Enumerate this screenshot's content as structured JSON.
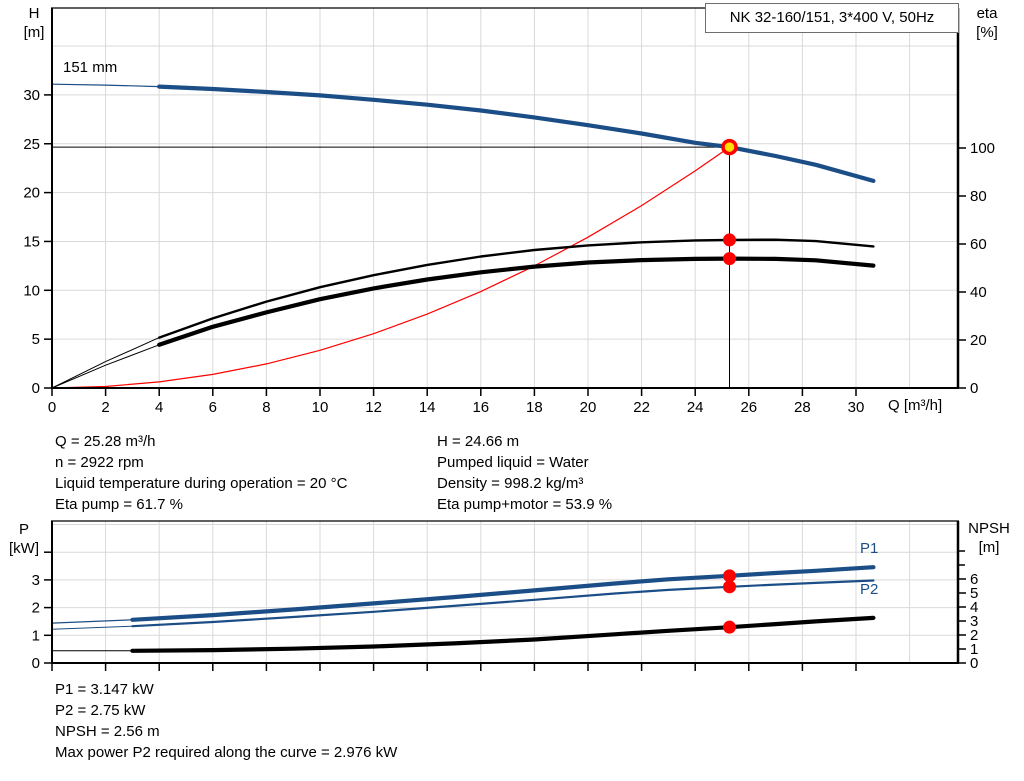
{
  "title_box": "NK 32-160/151, 3*400 V, 50Hz",
  "labels": {
    "h": "H",
    "h_unit": "[m]",
    "eta": "eta",
    "eta_unit": "[%]",
    "q_unit": "Q [m³/h]",
    "p": "P",
    "p_unit": "[kW]",
    "npsh": "NPSH",
    "npsh_unit": "[m]",
    "impeller": "151 mm",
    "p1": "P1",
    "p2": "P2"
  },
  "info_top_left": [
    "Q = 25.28 m³/h",
    "n = 2922 rpm",
    "Liquid temperature during operation = 20 °C",
    "Eta pump = 61.7 %"
  ],
  "info_top_right": [
    "H = 24.66 m",
    "Pumped liquid = Water",
    "Density = 998.2 kg/m³",
    "Eta pump+motor = 53.9 %"
  ],
  "info_bottom": [
    "P1 = 3.147 kW",
    "P2 = 2.75 kW",
    "NPSH = 2.56 m",
    "Max power P2 required along the curve = 2.976 kW"
  ],
  "colors": {
    "blue": "#1b4d86",
    "red": "#ff0000",
    "yellow": "#ffe000",
    "black": "#000000",
    "grid": "#d9d9d9"
  },
  "duty_point": {
    "q": 25.28,
    "h": 24.66,
    "eta_pump": 61.7,
    "eta_pump_motor": 53.9,
    "p1": 3.147,
    "p2": 2.75,
    "npsh": 2.56
  },
  "chart_data": [
    {
      "type": "line",
      "name": "head-efficiency-chart",
      "frame": [
        52,
        8,
        958,
        388
      ],
      "x": {
        "zero": 52,
        "per": 26.8,
        "ticks": [
          0,
          2,
          4,
          6,
          8,
          10,
          12,
          14,
          16,
          18,
          20,
          22,
          24,
          26,
          28,
          30
        ],
        "tick_labels": true,
        "grid_step": 2,
        "grid_last": 32
      },
      "left": {
        "per": 9.77,
        "ticks": [
          0,
          5,
          10,
          15,
          20,
          25,
          30
        ],
        "grid": [
          5,
          10,
          15,
          20,
          25,
          30,
          35
        ]
      },
      "right": {
        "per": 2.4,
        "ticks": [
          0,
          20,
          40,
          60,
          80,
          100
        ],
        "extra_ticks": []
      },
      "ref": {
        "q": 25.28,
        "h": 24.66
      },
      "series": [
        {
          "name": "system-curve",
          "axis": "left",
          "color": "red",
          "width": 1.2,
          "points": [
            [
              0,
              0
            ],
            [
              2,
              0.15
            ],
            [
              4,
              0.62
            ],
            [
              6,
              1.39
            ],
            [
              8,
              2.47
            ],
            [
              10,
              3.86
            ],
            [
              12,
              5.56
            ],
            [
              14,
              7.56
            ],
            [
              16,
              9.87
            ],
            [
              18,
              12.5
            ],
            [
              20,
              15.43
            ],
            [
              22,
              18.67
            ],
            [
              24,
              22.22
            ],
            [
              25.28,
              24.66
            ]
          ]
        },
        {
          "name": "head-curve-151mm",
          "axis": "left",
          "color": "blue",
          "width": 4.2,
          "thin_width": 1.2,
          "thin_until": 2.9,
          "points": [
            [
              0,
              31.1
            ],
            [
              2,
              31.0
            ],
            [
              4,
              30.85
            ],
            [
              6,
              30.6
            ],
            [
              8,
              30.3
            ],
            [
              10,
              29.95
            ],
            [
              12,
              29.5
            ],
            [
              14,
              29.0
            ],
            [
              16,
              28.4
            ],
            [
              18,
              27.7
            ],
            [
              20,
              26.9
            ],
            [
              22,
              26.05
            ],
            [
              24,
              25.1
            ],
            [
              25.28,
              24.66
            ],
            [
              27,
              23.75
            ],
            [
              28.5,
              22.85
            ],
            [
              30.65,
              21.2
            ]
          ]
        },
        {
          "name": "eta-pump-curve",
          "axis": "right",
          "color": "black",
          "width": 2.4,
          "thin_width": 1,
          "thin_until": 2.9,
          "points": [
            [
              0,
              0
            ],
            [
              2,
              11
            ],
            [
              4,
              21
            ],
            [
              6,
              29
            ],
            [
              8,
              36
            ],
            [
              10,
              42
            ],
            [
              12,
              47
            ],
            [
              14,
              51.3
            ],
            [
              16,
              54.8
            ],
            [
              18,
              57.5
            ],
            [
              20,
              59.4
            ],
            [
              22,
              60.7
            ],
            [
              24,
              61.5
            ],
            [
              25.28,
              61.7
            ],
            [
              27,
              61.8
            ],
            [
              28.5,
              61.2
            ],
            [
              30.65,
              59.0
            ]
          ]
        },
        {
          "name": "eta-pump-motor-curve",
          "axis": "right",
          "color": "black",
          "width": 4.2,
          "thin_width": 1,
          "thin_until": 2.9,
          "points": [
            [
              0,
              0
            ],
            [
              2,
              9.5
            ],
            [
              4,
              18
            ],
            [
              6,
              25.5
            ],
            [
              8,
              31.5
            ],
            [
              10,
              37
            ],
            [
              12,
              41.5
            ],
            [
              14,
              45.2
            ],
            [
              16,
              48.2
            ],
            [
              18,
              50.6
            ],
            [
              20,
              52.3
            ],
            [
              22,
              53.3
            ],
            [
              24,
              53.8
            ],
            [
              25.28,
              53.9
            ],
            [
              27,
              53.8
            ],
            [
              28.5,
              53.2
            ],
            [
              30.65,
              51.0
            ]
          ]
        }
      ],
      "markers": [
        {
          "type": "duty",
          "axis": "left",
          "q": 25.28,
          "v": 24.66
        },
        {
          "type": "dot",
          "axis": "right",
          "q": 25.28,
          "v": 61.7
        },
        {
          "type": "dot",
          "axis": "right",
          "q": 25.28,
          "v": 53.9
        }
      ]
    },
    {
      "type": "line",
      "name": "power-npsh-chart",
      "frame": [
        52,
        521,
        958,
        663
      ],
      "x": {
        "zero": 52,
        "per": 26.8,
        "ticks": [
          0,
          2,
          4,
          6,
          8,
          10,
          12,
          14,
          16,
          18,
          20,
          22,
          24,
          26,
          28,
          30
        ],
        "tick_labels": false,
        "grid_step": 2,
        "grid_last": 32
      },
      "left": {
        "per": 27.7,
        "ticks": [
          0,
          1,
          2,
          3
        ],
        "extra_ticks": [
          4
        ],
        "grid": [
          1,
          2,
          3,
          4,
          5
        ]
      },
      "right": {
        "per": 14.0,
        "ticks": [
          0,
          1,
          2,
          3,
          4,
          5,
          6
        ],
        "extra_ticks": [
          7,
          8
        ]
      },
      "series": [
        {
          "name": "p1-curve",
          "axis": "left",
          "color": "blue",
          "width": 4.2,
          "thin_width": 1.2,
          "thin_until": 3,
          "points": [
            [
              0,
              1.44
            ],
            [
              3,
              1.56
            ],
            [
              6,
              1.73
            ],
            [
              9,
              1.93
            ],
            [
              12,
              2.15
            ],
            [
              15,
              2.38
            ],
            [
              18,
              2.62
            ],
            [
              21,
              2.87
            ],
            [
              23,
              3.02
            ],
            [
              25.28,
              3.147
            ],
            [
              27,
              3.25
            ],
            [
              28.5,
              3.33
            ],
            [
              30.65,
              3.46
            ]
          ]
        },
        {
          "name": "p2-curve",
          "axis": "left",
          "color": "blue",
          "width": 2.2,
          "thin_width": 1,
          "thin_until": 3,
          "points": [
            [
              0,
              1.22
            ],
            [
              3,
              1.33
            ],
            [
              6,
              1.48
            ],
            [
              9,
              1.66
            ],
            [
              12,
              1.85
            ],
            [
              15,
              2.06
            ],
            [
              18,
              2.28
            ],
            [
              21,
              2.51
            ],
            [
              23,
              2.64
            ],
            [
              25.28,
              2.75
            ],
            [
              27,
              2.83
            ],
            [
              28.5,
              2.89
            ],
            [
              30.65,
              2.98
            ]
          ]
        },
        {
          "name": "npsh-curve",
          "axis": "right",
          "color": "black",
          "width": 4.2,
          "thin_width": 1,
          "thin_until": 3,
          "points": [
            [
              0,
              0.88
            ],
            [
              3,
              0.87
            ],
            [
              6,
              0.92
            ],
            [
              9,
              1.02
            ],
            [
              12,
              1.18
            ],
            [
              15,
              1.4
            ],
            [
              18,
              1.68
            ],
            [
              21,
              2.05
            ],
            [
              23,
              2.3
            ],
            [
              25.28,
              2.56
            ],
            [
              27,
              2.78
            ],
            [
              28.5,
              2.97
            ],
            [
              30.65,
              3.22
            ]
          ]
        }
      ],
      "markers": [
        {
          "type": "dot",
          "axis": "left",
          "q": 25.28,
          "v": 3.147
        },
        {
          "type": "dot",
          "axis": "left",
          "q": 25.28,
          "v": 2.75
        },
        {
          "type": "dot",
          "axis": "right",
          "q": 25.28,
          "v": 2.56
        }
      ]
    }
  ]
}
